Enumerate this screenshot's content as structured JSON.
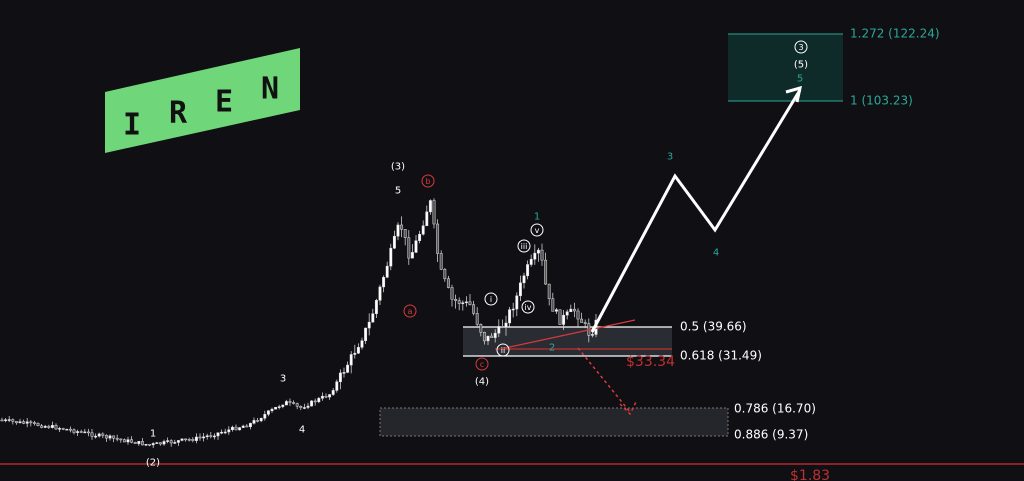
{
  "logo": {
    "letters": [
      "I",
      "R",
      "E",
      "N"
    ]
  },
  "fib_levels": [
    {
      "label": "1.272 (122.24)"
    },
    {
      "label": "1 (103.23)"
    },
    {
      "label": "0.5 (39.66)"
    },
    {
      "label": "0.618 (31.49)"
    },
    {
      "label": "0.786 (16.70)"
    },
    {
      "label": "0.886 (9.37)"
    }
  ],
  "wave_labels": [
    "(3)",
    "5",
    "b",
    "a",
    "c",
    "(4)",
    "3",
    "4",
    "1",
    "(2)",
    "1",
    "v",
    "iii",
    "iv",
    "i",
    "ii",
    "2",
    "3",
    "4",
    "5",
    "3",
    "(5)"
  ],
  "price_labels": [
    "$33.34",
    "$1.83"
  ]
}
